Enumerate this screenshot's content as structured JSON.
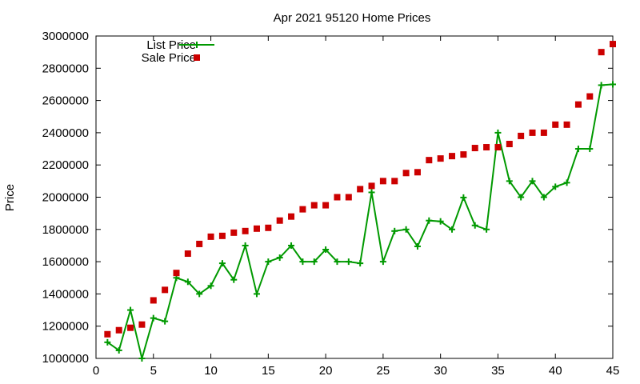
{
  "chart_data": {
    "type": "line",
    "title": "Apr 2021 95120 Home Prices",
    "xlabel": "",
    "ylabel": "Price",
    "xlim": [
      0,
      45
    ],
    "ylim": [
      1000000,
      3000000
    ],
    "xticks": [
      0,
      5,
      10,
      15,
      20,
      25,
      30,
      35,
      40,
      45
    ],
    "yticks": [
      1000000,
      1200000,
      1400000,
      1600000,
      1800000,
      2000000,
      2200000,
      2400000,
      2600000,
      2800000,
      3000000
    ],
    "grid": false,
    "legend_position": "top-left",
    "series": [
      {
        "name": "List Price",
        "style": "line-with-plus-markers",
        "color": "#009900",
        "x": [
          1,
          2,
          3,
          4,
          5,
          6,
          7,
          8,
          9,
          10,
          11,
          12,
          13,
          14,
          15,
          16,
          17,
          18,
          19,
          20,
          21,
          22,
          23,
          24,
          25,
          26,
          27,
          28,
          29,
          30,
          31,
          32,
          33,
          34,
          35,
          36,
          37,
          38,
          39,
          40,
          41,
          42,
          43,
          44,
          45
        ],
        "values": [
          1100000,
          1050000,
          1300000,
          1000000,
          1250000,
          1230000,
          1500000,
          1475000,
          1400000,
          1450000,
          1590000,
          1488000,
          1700000,
          1400000,
          1600000,
          1625000,
          1700000,
          1600000,
          1600000,
          1675000,
          1600000,
          1600000,
          1590000,
          2030000,
          1600000,
          1790000,
          1800000,
          1695000,
          1855000,
          1850000,
          1800000,
          1998000,
          1825000,
          1800000,
          2400000,
          2100000,
          2000000,
          2100000,
          2000000,
          2065000,
          2090000,
          2300000,
          2300000,
          2695000,
          2700000
        ]
      },
      {
        "name": "Sale Price",
        "style": "square-markers",
        "color": "#cc0000",
        "x": [
          1,
          2,
          3,
          4,
          5,
          6,
          7,
          8,
          9,
          10,
          11,
          12,
          13,
          14,
          15,
          16,
          17,
          18,
          19,
          20,
          21,
          22,
          23,
          24,
          25,
          26,
          27,
          28,
          29,
          30,
          31,
          32,
          33,
          34,
          35,
          36,
          37,
          38,
          39,
          40,
          41,
          42,
          43,
          44,
          45
        ],
        "values": [
          1150000,
          1175000,
          1190000,
          1210000,
          1360000,
          1425000,
          1530000,
          1650000,
          1710000,
          1755000,
          1760000,
          1780000,
          1790000,
          1805000,
          1810000,
          1855000,
          1880000,
          1925000,
          1950000,
          1950000,
          2000000,
          2000000,
          2050000,
          2070000,
          2100000,
          2100000,
          2150000,
          2155000,
          2230000,
          2240000,
          2255000,
          2265000,
          2305000,
          2310000,
          2310000,
          2330000,
          2380000,
          2400000,
          2400000,
          2450000,
          2450000,
          2575000,
          2625000,
          2900000,
          2950000
        ]
      }
    ]
  }
}
